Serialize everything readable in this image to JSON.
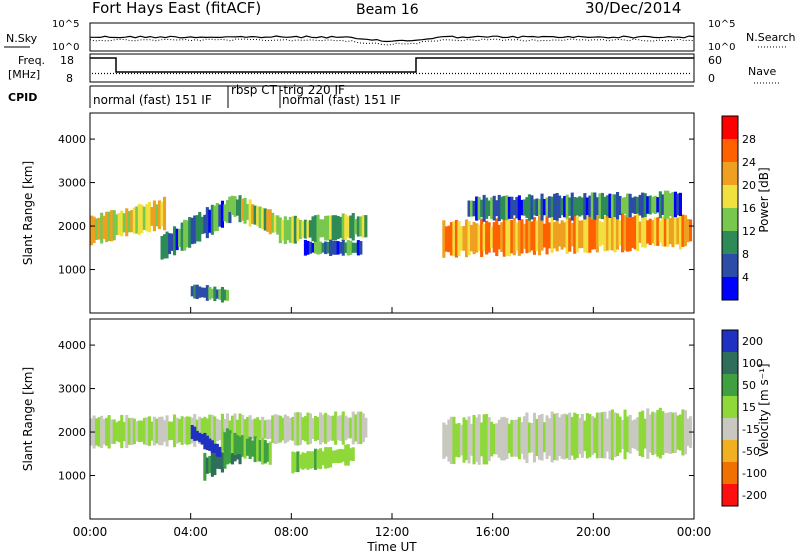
{
  "header": {
    "station": "Fort Hays East (fitACF)",
    "beam": "Beam 16",
    "date": "30/Dec/2014"
  },
  "noise_panel": {
    "left_label": "N.Sky",
    "left_ticks": [
      "10^5",
      "10^0"
    ],
    "right_label": "N.Search",
    "right_ticks": [
      "10^5",
      "10^0"
    ]
  },
  "freq_panel": {
    "left_label_1": "Freq.",
    "left_label_2": "[MHz]",
    "left_ticks": [
      "18",
      "8"
    ],
    "right_label": "Nave",
    "right_ticks": [
      "60",
      "0"
    ]
  },
  "cpid_panel": {
    "label": "CPID",
    "modes": [
      "normal (fast) 151 IF",
      "rbsp CT",
      "-trig 220 IF",
      "normal (fast) 151 IF"
    ]
  },
  "colors": {
    "power": [
      "#0000ff",
      "#2b4da8",
      "#2e8b57",
      "#78c850",
      "#f0e040",
      "#f0a020",
      "#ff6000",
      "#ff0000"
    ],
    "velocity": [
      "#2030c0",
      "#2e6e5a",
      "#3ea040",
      "#8fd83a",
      "#c8c8c0",
      "#f0b020",
      "#f07000",
      "#ff1010"
    ]
  },
  "chart_data": [
    {
      "type": "heatmap",
      "quantity": "power",
      "xlabel": "",
      "ylabel": "Slant Range [km]",
      "ylim": [
        0,
        4600
      ],
      "yticks": [
        "1000",
        "2000",
        "3000",
        "4000"
      ],
      "colorbar_label": "Power [dB]",
      "colorbar_ticks": [
        "4",
        "8",
        "12",
        "16",
        "20",
        "24",
        "28"
      ],
      "colorbar_range": [
        0,
        32
      ],
      "bands": [
        {
          "t0": 0.0,
          "t1": 3.0,
          "center_start": 1900,
          "center_end": 2300,
          "width": 600,
          "value": 18
        },
        {
          "t0": 2.8,
          "t1": 5.6,
          "center_start": 1500,
          "center_end": 2400,
          "width": 550,
          "value": 9
        },
        {
          "t0": 4.0,
          "t1": 5.5,
          "center_start": 500,
          "center_end": 400,
          "width": 300,
          "value": 10
        },
        {
          "t0": 5.5,
          "t1": 7.5,
          "center_start": 2500,
          "center_end": 2000,
          "width": 500,
          "value": 16
        },
        {
          "t0": 7.5,
          "t1": 11.0,
          "center_start": 1900,
          "center_end": 2000,
          "width": 500,
          "value": 14
        },
        {
          "t0": 8.5,
          "t1": 10.8,
          "center_start": 1500,
          "center_end": 1500,
          "width": 300,
          "value": 8
        },
        {
          "t0": 14.0,
          "t1": 23.9,
          "center_start": 1700,
          "center_end": 1900,
          "width": 700,
          "value": 22
        },
        {
          "t0": 15.0,
          "t1": 23.5,
          "center_start": 2400,
          "center_end": 2500,
          "width": 500,
          "value": 9
        }
      ]
    },
    {
      "type": "heatmap",
      "quantity": "velocity",
      "xlabel": "Time UT",
      "xticks": [
        "00:00",
        "04:00",
        "08:00",
        "12:00",
        "16:00",
        "20:00",
        "00:00"
      ],
      "xlim": [
        0,
        24
      ],
      "ylabel": "Slant Range [km]",
      "ylim": [
        0,
        4600
      ],
      "yticks": [
        "1000",
        "2000",
        "3000",
        "4000"
      ],
      "colorbar_label": "Velocity [m s⁻¹]",
      "colorbar_ticks": [
        "200",
        "100",
        "50",
        "15",
        "-15",
        "-50",
        "-100",
        "-200"
      ],
      "bands": [
        {
          "t0": 0.0,
          "t1": 11.0,
          "center_start": 2000,
          "center_end": 2100,
          "width": 600,
          "value": 0
        },
        {
          "t0": 4.5,
          "t1": 6.0,
          "center_start": 1200,
          "center_end": 1600,
          "width": 500,
          "value": 80
        },
        {
          "t0": 5.2,
          "t1": 7.2,
          "center_start": 1800,
          "center_end": 1500,
          "width": 500,
          "value": 40
        },
        {
          "t0": 8.0,
          "t1": 10.5,
          "center_start": 1300,
          "center_end": 1500,
          "width": 400,
          "value": 20
        },
        {
          "t0": 4.0,
          "t1": 5.2,
          "center_start": 2000,
          "center_end": 1500,
          "width": 300,
          "value": 200
        },
        {
          "t0": 14.0,
          "t1": 23.9,
          "center_start": 1800,
          "center_end": 2000,
          "width": 900,
          "value": 0
        }
      ]
    }
  ]
}
